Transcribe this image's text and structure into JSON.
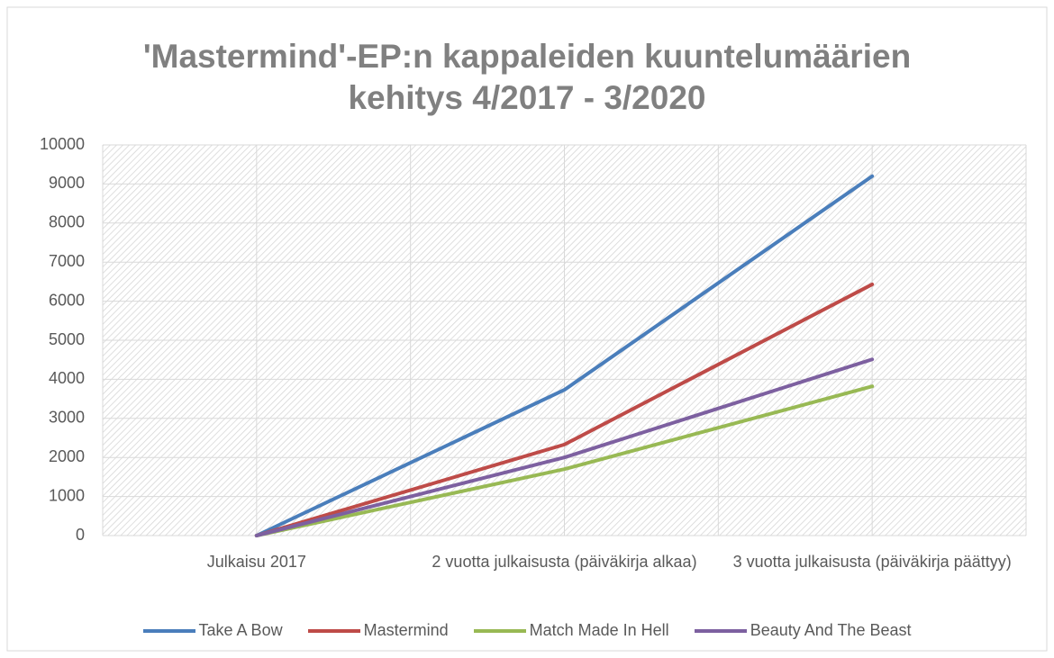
{
  "chart_data": {
    "type": "line",
    "title": "'Mastermind'-EP:n kappaleiden kuuntelumäärien kehitys 4/2017 - 3/2020",
    "categories": [
      "Julkaisu 2017",
      "2 vuotta julkaisusta (päiväkirja alkaa)",
      "3 vuotta julkaisusta (päiväkirja päättyy)"
    ],
    "series": [
      {
        "name": "Take A Bow",
        "color": "#4a7ebb",
        "values": [
          0,
          3730,
          9200
        ]
      },
      {
        "name": "Mastermind",
        "color": "#be4b48",
        "values": [
          0,
          2330,
          6430
        ]
      },
      {
        "name": "Match Made In Hell",
        "color": "#98b954",
        "values": [
          0,
          1700,
          3820
        ]
      },
      {
        "name": "Beauty And The Beast",
        "color": "#7d60a0",
        "values": [
          0,
          2000,
          4510
        ]
      }
    ],
    "ylim": [
      0,
      10000
    ],
    "yticks": [
      0,
      1000,
      2000,
      3000,
      4000,
      5000,
      6000,
      7000,
      8000,
      9000,
      10000
    ],
    "grid": true,
    "legend": "bottom"
  }
}
